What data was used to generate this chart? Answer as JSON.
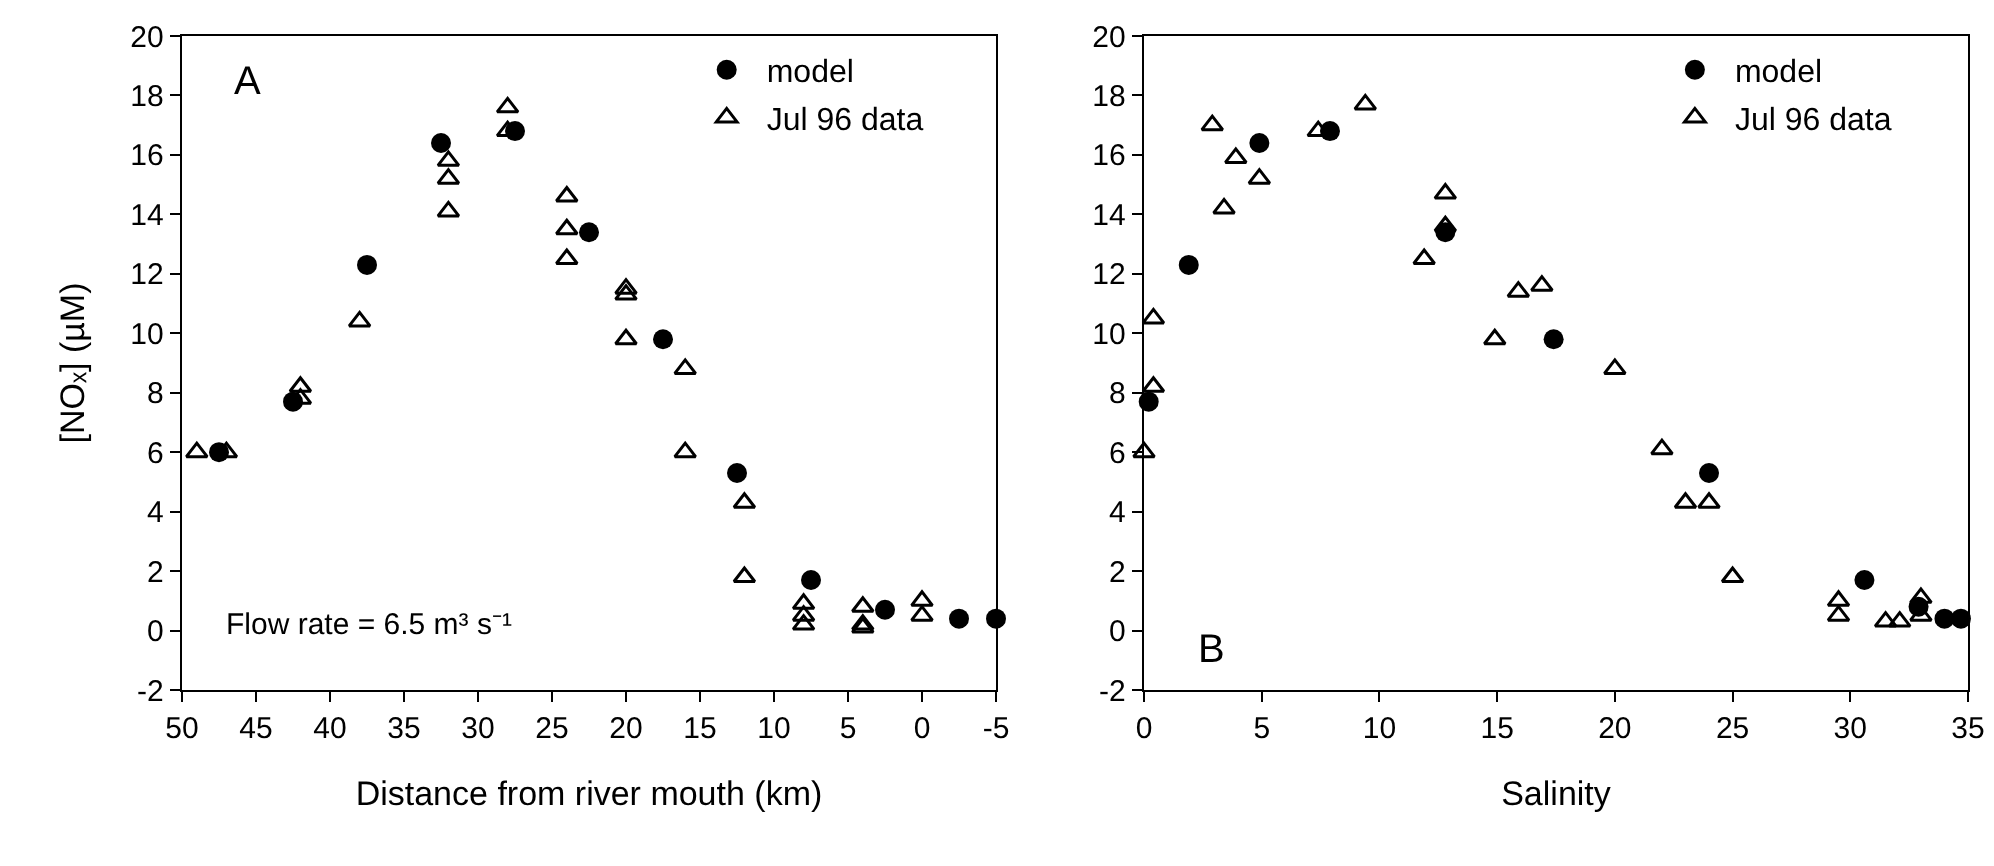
{
  "chart_data": [
    {
      "type": "scatter",
      "xlabel": "Distance from river mouth (km)",
      "ylabel": "[NOₓ] (µM)",
      "xlim": [
        50,
        -5
      ],
      "xticks": [
        50,
        45,
        40,
        35,
        30,
        25,
        20,
        15,
        10,
        5,
        0,
        -5
      ],
      "ylim": [
        -2,
        20
      ],
      "yticks": [
        -2,
        0,
        2,
        4,
        6,
        8,
        10,
        12,
        14,
        16,
        18,
        20
      ],
      "grid": false,
      "legend": "top right",
      "annotations": [
        "A",
        "Flow rate = 6.5 m³ s⁻¹"
      ],
      "series": [
        {
          "name": "model",
          "color": "#000000",
          "marker": "circle",
          "x": [
            47.5,
            42.5,
            37.5,
            32.5,
            27.5,
            22.5,
            17.5,
            12.5,
            7.5,
            2.5,
            -2.5,
            -5
          ],
          "values": [
            6.0,
            7.7,
            12.3,
            16.4,
            16.8,
            13.4,
            9.8,
            5.3,
            1.7,
            0.7,
            0.4,
            0.4
          ]
        },
        {
          "name": "Jul 96 data",
          "color": "#000000",
          "marker": "triangle",
          "x": [
            49,
            47,
            42,
            42,
            38,
            32,
            32,
            32,
            28,
            28,
            24,
            24,
            24,
            20,
            20,
            20,
            16,
            16,
            12,
            12,
            8,
            8,
            8,
            4,
            4,
            4,
            0,
            0
          ],
          "values": [
            6.0,
            6.0,
            8.2,
            7.8,
            10.4,
            15.8,
            15.2,
            14.1,
            17.6,
            16.8,
            14.6,
            13.5,
            12.5,
            11.5,
            11.3,
            9.8,
            8.8,
            6.0,
            4.3,
            1.8,
            0.9,
            0.5,
            0.2,
            0.8,
            0.2,
            0.1,
            1.0,
            0.5
          ]
        }
      ]
    },
    {
      "type": "scatter",
      "xlabel": "Salinity",
      "xlim": [
        0,
        35
      ],
      "xticks": [
        0,
        5,
        10,
        15,
        20,
        25,
        30,
        35
      ],
      "ylim": [
        -2,
        20
      ],
      "yticks": [
        -2,
        0,
        2,
        4,
        6,
        8,
        10,
        12,
        14,
        16,
        18,
        20
      ],
      "grid": false,
      "legend": "top right",
      "annotations": [
        "B"
      ],
      "series": [
        {
          "name": "model",
          "color": "#000000",
          "marker": "circle",
          "x": [
            0.2,
            1.9,
            4.9,
            7.9,
            12.8,
            17.4,
            24.0,
            30.6,
            32.9,
            34.0,
            34.7
          ],
          "values": [
            7.7,
            12.3,
            16.4,
            16.8,
            13.4,
            9.8,
            5.3,
            1.7,
            0.8,
            0.4,
            0.4
          ]
        },
        {
          "name": "Jul 96 data",
          "color": "#000000",
          "marker": "triangle",
          "x": [
            0.0,
            0.4,
            0.4,
            2.9,
            3.9,
            3.4,
            4.9,
            7.4,
            9.4,
            11.9,
            12.8,
            12.8,
            14.9,
            15.9,
            16.9,
            20.0,
            22.0,
            23.0,
            24.0,
            25.0,
            29.5,
            29.5,
            31.5,
            32.1,
            33.0,
            33.0
          ],
          "values": [
            6.0,
            10.5,
            8.2,
            17.0,
            15.9,
            14.2,
            15.2,
            16.8,
            17.7,
            12.5,
            14.7,
            13.6,
            9.8,
            11.4,
            11.6,
            8.8,
            6.1,
            4.3,
            4.3,
            1.8,
            1.0,
            0.5,
            0.3,
            0.3,
            1.1,
            0.5
          ]
        }
      ]
    }
  ]
}
